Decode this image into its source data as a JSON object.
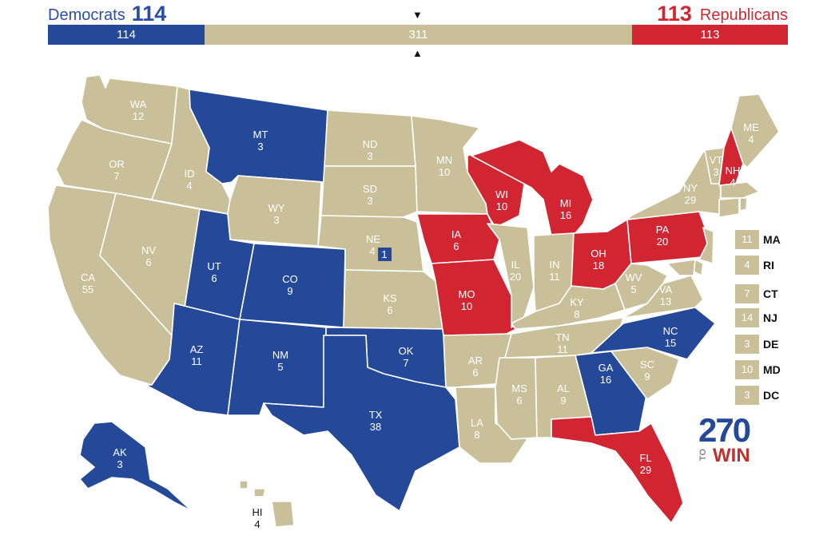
{
  "header": {
    "dem_label": "Democrats",
    "dem_total": "114",
    "rep_total": "113",
    "rep_label": "Republicans",
    "bar_dem": "114",
    "bar_tossup": "311",
    "bar_rep": "113",
    "marker_top": "▼",
    "marker_bottom": "▲"
  },
  "colors": {
    "democrat": "#244999",
    "republican": "#d22532",
    "tossup": "#c9bf98"
  },
  "states": {
    "WA": {
      "abbr": "WA",
      "ev": "12",
      "status": "tossup"
    },
    "OR": {
      "abbr": "OR",
      "ev": "7",
      "status": "tossup"
    },
    "CA": {
      "abbr": "CA",
      "ev": "55",
      "status": "tossup"
    },
    "ID": {
      "abbr": "ID",
      "ev": "4",
      "status": "tossup"
    },
    "NV": {
      "abbr": "NV",
      "ev": "6",
      "status": "tossup"
    },
    "MT": {
      "abbr": "MT",
      "ev": "3",
      "status": "democrat"
    },
    "WY": {
      "abbr": "WY",
      "ev": "3",
      "status": "tossup"
    },
    "UT": {
      "abbr": "UT",
      "ev": "6",
      "status": "democrat"
    },
    "CO": {
      "abbr": "CO",
      "ev": "9",
      "status": "democrat"
    },
    "AZ": {
      "abbr": "AZ",
      "ev": "11",
      "status": "democrat"
    },
    "NM": {
      "abbr": "NM",
      "ev": "5",
      "status": "democrat"
    },
    "ND": {
      "abbr": "ND",
      "ev": "3",
      "status": "tossup"
    },
    "SD": {
      "abbr": "SD",
      "ev": "3",
      "status": "tossup"
    },
    "NE": {
      "abbr": "NE",
      "ev": "4",
      "status": "tossup",
      "district_ev": "1"
    },
    "KS": {
      "abbr": "KS",
      "ev": "6",
      "status": "tossup"
    },
    "OK": {
      "abbr": "OK",
      "ev": "7",
      "status": "democrat"
    },
    "TX": {
      "abbr": "TX",
      "ev": "38",
      "status": "democrat"
    },
    "MN": {
      "abbr": "MN",
      "ev": "10",
      "status": "tossup"
    },
    "IA": {
      "abbr": "IA",
      "ev": "6",
      "status": "republican"
    },
    "MO": {
      "abbr": "MO",
      "ev": "10",
      "status": "republican"
    },
    "AR": {
      "abbr": "AR",
      "ev": "6",
      "status": "tossup"
    },
    "LA": {
      "abbr": "LA",
      "ev": "8",
      "status": "tossup"
    },
    "WI": {
      "abbr": "WI",
      "ev": "10",
      "status": "republican"
    },
    "IL": {
      "abbr": "IL",
      "ev": "20",
      "status": "tossup"
    },
    "MI": {
      "abbr": "MI",
      "ev": "16",
      "status": "republican"
    },
    "IN": {
      "abbr": "IN",
      "ev": "11",
      "status": "tossup"
    },
    "OH": {
      "abbr": "OH",
      "ev": "18",
      "status": "republican"
    },
    "KY": {
      "abbr": "KY",
      "ev": "8",
      "status": "tossup"
    },
    "TN": {
      "abbr": "TN",
      "ev": "11",
      "status": "tossup"
    },
    "MS": {
      "abbr": "MS",
      "ev": "6",
      "status": "tossup"
    },
    "AL": {
      "abbr": "AL",
      "ev": "9",
      "status": "tossup"
    },
    "GA": {
      "abbr": "GA",
      "ev": "16",
      "status": "democrat"
    },
    "FL": {
      "abbr": "FL",
      "ev": "29",
      "status": "republican"
    },
    "SC": {
      "abbr": "SC",
      "ev": "9",
      "status": "tossup"
    },
    "NC": {
      "abbr": "NC",
      "ev": "15",
      "status": "democrat"
    },
    "VA": {
      "abbr": "VA",
      "ev": "13",
      "status": "tossup"
    },
    "WV": {
      "abbr": "WV",
      "ev": "5",
      "status": "tossup"
    },
    "PA": {
      "abbr": "PA",
      "ev": "20",
      "status": "republican"
    },
    "NY": {
      "abbr": "NY",
      "ev": "29",
      "status": "tossup"
    },
    "VT": {
      "abbr": "VT",
      "ev": "3",
      "status": "tossup"
    },
    "NH": {
      "abbr": "NH",
      "ev": "4",
      "status": "republican"
    },
    "ME": {
      "abbr": "ME",
      "ev": "4",
      "status": "tossup"
    },
    "AK": {
      "abbr": "AK",
      "ev": "3",
      "status": "democrat"
    },
    "HI": {
      "abbr": "HI",
      "ev": "4",
      "status": "tossup"
    }
  },
  "small_states": [
    {
      "abbr": "MA",
      "ev": "11",
      "status": "tossup"
    },
    {
      "abbr": "RI",
      "ev": "4",
      "status": "tossup"
    },
    {
      "abbr": "CT",
      "ev": "7",
      "status": "tossup"
    },
    {
      "abbr": "NJ",
      "ev": "14",
      "status": "tossup"
    },
    {
      "abbr": "DE",
      "ev": "3",
      "status": "tossup"
    },
    {
      "abbr": "MD",
      "ev": "10",
      "status": "tossup"
    },
    {
      "abbr": "DC",
      "ev": "3",
      "status": "tossup"
    }
  ],
  "logo": {
    "number": "270",
    "to": "TO",
    "win": "WIN"
  }
}
